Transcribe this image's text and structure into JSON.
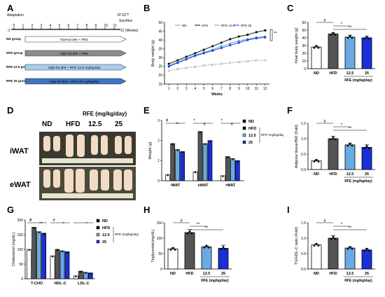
{
  "panel_labels": [
    "A",
    "B",
    "C",
    "D",
    "E",
    "F",
    "G",
    "H",
    "I"
  ],
  "panel_a": {
    "timeline_start": "-1",
    "ticks": [
      "0",
      "1",
      "2",
      "3",
      "4",
      "5",
      "6",
      "7",
      "8",
      "9",
      "10",
      "11"
    ],
    "unit_label": "12 (Weeks)",
    "adaptation": "Adaptation",
    "ipgtt": "IP-GTT",
    "sacrifice": "Sacrifice",
    "groups": [
      {
        "name": "ND group",
        "treatment": "Normal diet + PBS",
        "color": "#ffffff"
      },
      {
        "name": "HFD group",
        "treatment": "High-fat diet + PBS",
        "color": "#8c8c8c"
      },
      {
        "name": "RFE 12.5 group",
        "treatment": "High-fat diet + RFE 12.5 mg/kg/day",
        "color": "#a9cdee"
      },
      {
        "name": "RFE 25 group",
        "treatment": "High-fat diet + RFE 25 mg/kg/day",
        "color": "#3e74c2"
      }
    ]
  },
  "chart_data": [
    {
      "id": "B",
      "type": "line",
      "ylabel": "Body weight (g)",
      "xlabel": "Weeks",
      "ylim": [
        15,
        50
      ],
      "xlim": [
        0.5,
        12.5
      ],
      "x": [
        1,
        2,
        3,
        4,
        5,
        6,
        7,
        8,
        9,
        10,
        11,
        12
      ],
      "series": [
        {
          "name": "ND",
          "color": "#9a9a9a",
          "values": [
            22.5,
            23.5,
            24.2,
            24.8,
            25.5,
            26.0,
            26.5,
            27.0,
            27.5,
            28.0,
            28.5,
            28.5
          ]
        },
        {
          "name": "HFD",
          "color": "#111111",
          "values": [
            26.5,
            28.5,
            30.5,
            32.5,
            34.5,
            36.5,
            38.5,
            40.5,
            42,
            43,
            44.5,
            45.5
          ]
        },
        {
          "name": "RFE 12.5",
          "color": "#5aa6e6",
          "values": [
            25.5,
            27.5,
            29.5,
            31.5,
            33,
            34.5,
            36.5,
            38,
            39.5,
            40.5,
            41.5,
            42
          ]
        },
        {
          "name": "RFE 25",
          "color": "#1f3fd6",
          "values": [
            25,
            27,
            29,
            31,
            32.5,
            34,
            35.5,
            37,
            38.5,
            40,
            41,
            41.5
          ]
        }
      ],
      "annotations": [
        "*",
        "**"
      ]
    },
    {
      "id": "C",
      "type": "bar",
      "ylabel": "Final body weight (g)",
      "xlabel": "RFE (mg/kg/day)",
      "ylim": [
        0,
        60
      ],
      "categories": [
        "ND",
        "HFD",
        "12.5",
        "25"
      ],
      "values": [
        28,
        45,
        41,
        40
      ],
      "errors": [
        1.2,
        1.5,
        2.5,
        2.0
      ],
      "colors": [
        "#ffffff",
        "#555555",
        "#6aaae4",
        "#1b2fd6"
      ],
      "annotations": [
        "#",
        "*",
        "**"
      ]
    },
    {
      "id": "E",
      "type": "bar",
      "ylabel": "Weight (g)",
      "ylim": [
        0,
        3
      ],
      "categories": [
        "iWAT",
        "eWAT",
        "rWAT"
      ],
      "series": [
        {
          "name": "ND",
          "values": [
            0.3,
            0.45,
            0.25
          ]
        },
        {
          "name": "HFD",
          "values": [
            1.85,
            2.45,
            1.2
          ]
        },
        {
          "name": "12.5",
          "values": [
            1.55,
            1.85,
            1.1
          ]
        },
        {
          "name": "25",
          "values": [
            1.45,
            2.0,
            1.0
          ]
        }
      ],
      "annotations": [
        "#",
        "**",
        "*",
        "#",
        "*",
        "#",
        "*"
      ],
      "legend_title": "RFE (mg/kg/day)"
    },
    {
      "id": "F",
      "type": "bar",
      "ylabel": "Adipose tissue/BW (Fold)",
      "xlabel": "RFE (mg/kg/day)",
      "ylim": [
        0,
        1.5
      ],
      "categories": [
        "ND",
        "HFD",
        "12.5",
        "25"
      ],
      "values": [
        0.28,
        1.0,
        0.8,
        0.72
      ],
      "errors": [
        0.03,
        0.08,
        0.06,
        0.08
      ],
      "colors": [
        "#ffffff",
        "#555555",
        "#6aaae4",
        "#1b2fd6"
      ],
      "annotations": [
        "#",
        "*",
        "**"
      ]
    },
    {
      "id": "G",
      "type": "bar",
      "ylabel": "Cholesterol (mg/dL)",
      "ylim": [
        0,
        200
      ],
      "categories": [
        "T-CHO",
        "HDL-C",
        "LDL-C"
      ],
      "series": [
        {
          "name": "ND",
          "values": [
            100,
            78,
            10
          ]
        },
        {
          "name": "HFD",
          "values": [
            175,
            100,
            26
          ]
        },
        {
          "name": "12.5",
          "values": [
            160,
            95,
            22
          ]
        },
        {
          "name": "25",
          "values": [
            155,
            92,
            20
          ]
        }
      ],
      "annotations": [
        "#",
        "**",
        "#",
        "*",
        "#",
        "*"
      ],
      "legend_title": "RFE (mg/kg/day)"
    },
    {
      "id": "H",
      "type": "bar",
      "ylabel": "Triglyceride(mg/dL)",
      "xlabel": "RFE (mg/kg/day)",
      "ylim": [
        0,
        150
      ],
      "categories": [
        "ND",
        "HFD",
        "12.5",
        "25"
      ],
      "values": [
        65,
        118,
        72,
        67
      ],
      "errors": [
        3,
        10,
        3,
        10
      ],
      "colors": [
        "#ffffff",
        "#555555",
        "#6aaae4",
        "#1b2fd6"
      ],
      "annotations": [
        "#",
        "**",
        "**"
      ]
    },
    {
      "id": "I",
      "type": "bar",
      "ylabel": "TG/HDL-C ratio (Fold)",
      "xlabel": "RFE (mg/kg/day)",
      "ylim": [
        0,
        1.5
      ],
      "categories": [
        "ND",
        "HFD",
        "12.5",
        "25"
      ],
      "values": [
        0.78,
        1.0,
        0.68,
        0.62
      ],
      "errors": [
        0.04,
        0.08,
        0.03,
        0.05
      ],
      "colors": [
        "#ffffff",
        "#555555",
        "#6aaae4",
        "#1b2fd6"
      ],
      "annotations": [
        "#",
        "*",
        "**"
      ]
    }
  ],
  "panel_d": {
    "headers": [
      "ND",
      "HFD",
      "RFE (mg/kg/day)",
      "12.5",
      "25"
    ],
    "rows": [
      "iWAT",
      "eWAT"
    ]
  }
}
